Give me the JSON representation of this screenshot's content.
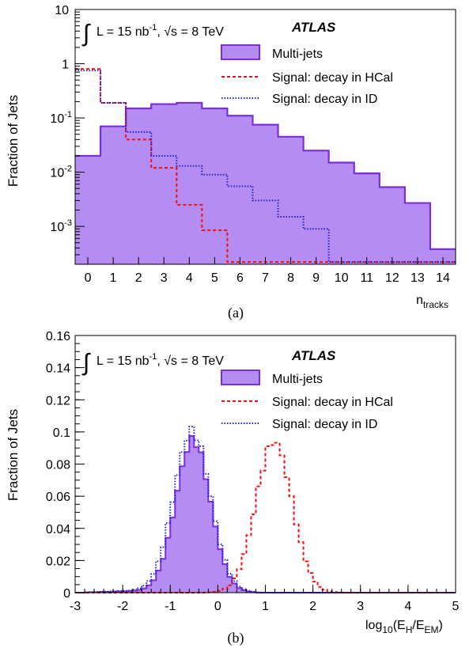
{
  "chart_data": [
    {
      "type": "step-histogram",
      "panel_label": "(a)",
      "ylabel": "Fraction of Jets",
      "xlabel_main": "n",
      "xlabel_sub": "tracks",
      "log_y": true,
      "ylim": [
        0.0002,
        10
      ],
      "xlim": [
        -0.5,
        14.5
      ],
      "y_ticks": [
        {
          "base": "10",
          "exp": "-3",
          "value": 0.001
        },
        {
          "base": "10",
          "exp": "-2",
          "value": 0.01
        },
        {
          "base": "10",
          "exp": "-1",
          "value": 0.1
        },
        {
          "base": "1",
          "exp": "",
          "value": 1
        },
        {
          "base": "10",
          "exp": "",
          "value": 10
        }
      ],
      "x_ticks": [
        "0",
        "1",
        "2",
        "3",
        "4",
        "5",
        "6",
        "7",
        "8",
        "9",
        "10",
        "11",
        "12",
        "13",
        "14"
      ],
      "bin_edges": [
        -0.5,
        0.5,
        1.5,
        2.5,
        3.5,
        4.5,
        5.5,
        6.5,
        7.5,
        8.5,
        9.5,
        10.5,
        11.5,
        12.5,
        13.5,
        14.5
      ],
      "atlas_label": "ATLAS",
      "lumi_prefix": "L = 15 nb",
      "lumi_exp": "-1",
      "lumi_energy": ", √s = 8 TeV",
      "series": [
        {
          "name": "Multi-jets",
          "style": "filled",
          "color": "#7b2fd6",
          "fill": "#b48cf2",
          "values": [
            0.02,
            0.07,
            0.15,
            0.18,
            0.19,
            0.15,
            0.11,
            0.075,
            0.045,
            0.025,
            0.015,
            0.0095,
            0.0053,
            0.0027,
            0.00038
          ]
        },
        {
          "name": "Signal: decay in HCal",
          "style": "dashed",
          "color": "#ee1111",
          "values": [
            0.8,
            0.19,
            0.04,
            0.012,
            0.0025,
            0.00085,
            0.00022,
            0.00022,
            0.00022,
            0.00022,
            0.00022,
            0.00022,
            0.00022,
            0.00022,
            0.00022
          ]
        },
        {
          "name": "Signal: decay in ID",
          "style": "dotted",
          "color": "#2222cc",
          "values": [
            0.75,
            0.19,
            0.055,
            0.02,
            0.013,
            0.009,
            0.0055,
            0.003,
            0.0015,
            0.0009,
            0.00022,
            0.00022,
            0.00022,
            0.00022,
            0.00022
          ]
        }
      ]
    },
    {
      "type": "step-histogram",
      "panel_label": "(b)",
      "ylabel": "Fraction of Jets",
      "xlabel_prefix": "log",
      "xlabel_sub1": "10",
      "xlabel_mid": "(E",
      "xlabel_sub2": "H",
      "xlabel_mid2": "/E",
      "xlabel_sub3": "EM",
      "xlabel_end": ")",
      "log_y": false,
      "ylim": [
        0,
        0.16
      ],
      "xlim": [
        -3,
        5
      ],
      "y_ticks": [
        "0",
        "0.02",
        "0.04",
        "0.06",
        "0.08",
        "0.1",
        "0.12",
        "0.14",
        "0.16"
      ],
      "x_ticks": [
        "-3",
        "-2",
        "-1",
        "0",
        "1",
        "2",
        "3",
        "4",
        "5"
      ],
      "bin_width": 0.1,
      "atlas_label": "ATLAS",
      "lumi_prefix": "L = 15 nb",
      "lumi_exp": "-1",
      "lumi_energy": ", √s = 8 TeV",
      "series": [
        {
          "name": "Multi-jets",
          "style": "filled",
          "color": "#7b2fd6",
          "fill": "#b48cf2",
          "shape": {
            "kind": "gaussian",
            "peak": 0.094,
            "mean": -0.52,
            "sigma": 0.36,
            "tail": 0.0015
          }
        },
        {
          "name": "Signal: decay in HCal",
          "style": "dashed",
          "color": "#ee1111",
          "shape": {
            "kind": "gaussian",
            "peak": 0.094,
            "mean": 1.18,
            "sigma": 0.38,
            "tail": 0.0
          }
        },
        {
          "name": "Signal: decay in ID",
          "style": "dotted",
          "color": "#2222cc",
          "shape": {
            "kind": "gaussian",
            "peak": 0.099,
            "mean": -0.54,
            "sigma": 0.38,
            "tail": 0.002
          }
        }
      ]
    }
  ]
}
